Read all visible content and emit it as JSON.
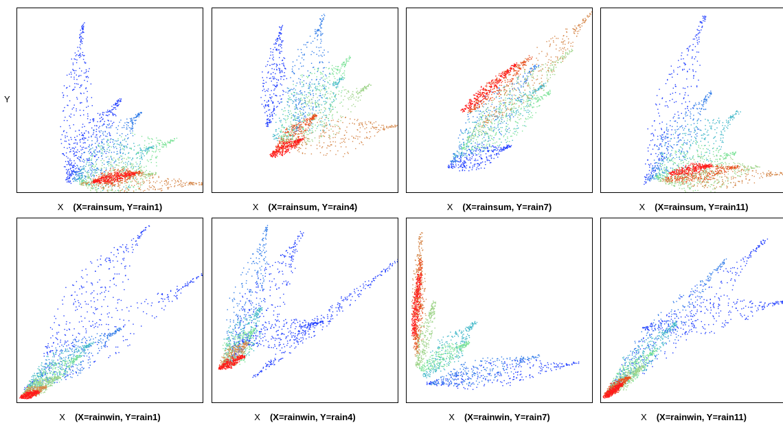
{
  "y_axis_label": "Y",
  "x_axis_label": "X",
  "colors": [
    "#1e3cff",
    "#2f7be8",
    "#3fb7c8",
    "#7fe39a",
    "#9fd48a",
    "#d6894d",
    "#e8501e",
    "#ff1a1a"
  ],
  "chart_data": [
    {
      "type": "scatter",
      "title": "(X=rainsum, Y=rain1)",
      "xlabel": "X",
      "ylabel": "Y",
      "grid": false
    },
    {
      "type": "scatter",
      "title": "(X=rainsum, Y=rain4)",
      "xlabel": "X",
      "ylabel": "",
      "grid": false
    },
    {
      "type": "scatter",
      "title": "(X=rainsum, Y=rain7)",
      "xlabel": "X",
      "ylabel": "",
      "grid": false
    },
    {
      "type": "scatter",
      "title": "(X=rainsum, Y=rain11)",
      "xlabel": "X",
      "ylabel": "",
      "grid": false
    },
    {
      "type": "scatter",
      "title": "(X=rainwin, Y=rain1)",
      "xlabel": "X",
      "ylabel": "",
      "grid": false
    },
    {
      "type": "scatter",
      "title": "(X=rainwin, Y=rain4)",
      "xlabel": "X",
      "ylabel": "",
      "grid": false
    },
    {
      "type": "scatter",
      "title": "(X=rainwin, Y=rain7)",
      "xlabel": "X",
      "ylabel": "",
      "grid": false
    },
    {
      "type": "scatter",
      "title": "(X=rainwin, Y=rain11)",
      "xlabel": "X",
      "ylabel": "",
      "grid": false
    }
  ]
}
